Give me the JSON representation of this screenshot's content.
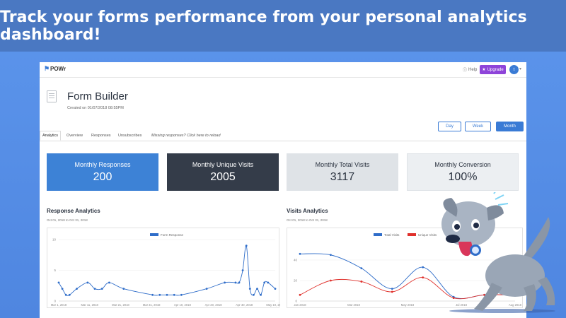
{
  "banner": {
    "text": "Track your forms performance from your personal analytics dashboard!"
  },
  "app": {
    "logo": "POWr",
    "help": "Help",
    "upgrade": "Upgrade",
    "avatar_initial": "t"
  },
  "form": {
    "title": "Form Builder",
    "created": "Created on 01/07/2018 08:55PM"
  },
  "periods": [
    "Day",
    "Week",
    "Month"
  ],
  "tabs": [
    "Analytics",
    "Overview",
    "Responses",
    "Unsubscribes",
    "Missing responses? Click here to reload"
  ],
  "cards": [
    {
      "label": "Monthly Responses",
      "value": "200"
    },
    {
      "label": "Monthly Unique Visits",
      "value": "2005"
    },
    {
      "label": "Monthly Total Visits",
      "value": "3117"
    },
    {
      "label": "Monthly Conversion",
      "value": "100%"
    }
  ],
  "response_section": {
    "title": "Response Analytics",
    "subtitle": "Oct 01, 2018 to Oct 31, 2018"
  },
  "visits_section": {
    "title": "Visits Analytics",
    "subtitle": "Oct 01, 2018 to Oct 31, 2018"
  },
  "chart_data": [
    {
      "type": "line",
      "title": "Response Analytics",
      "legend": "Form Response",
      "legend_position": "top",
      "grid": true,
      "ylim": [
        0,
        10
      ],
      "yticks": [
        "0",
        "5",
        "10"
      ],
      "xticks": [
        "Mar 1, 2018",
        "Mar 11, 2018",
        "Mar 21, 2018",
        "Mar 31, 2018",
        "Apr 10, 2018",
        "Apr 20, 2018",
        "Apr 30, 2018",
        "May 10, 2018"
      ],
      "color": "#2f6dc9",
      "x": [
        0,
        1,
        2,
        3,
        5,
        8,
        10,
        12,
        14,
        18,
        26,
        28,
        30,
        32,
        34,
        41,
        46,
        49,
        50,
        51,
        52,
        53,
        54,
        55,
        56,
        57,
        58,
        60
      ],
      "values": [
        3,
        2,
        1,
        1,
        2,
        3,
        2,
        2,
        3,
        2,
        1,
        1,
        1,
        1,
        1,
        2,
        3,
        3,
        3,
        5,
        9,
        2,
        1,
        2,
        1,
        3,
        3,
        2
      ]
    },
    {
      "type": "line",
      "title": "Visits Analytics",
      "legend_position": "top",
      "grid": true,
      "ylim": [
        0,
        60
      ],
      "yticks": [
        "0",
        "20",
        "40"
      ],
      "xticks": [
        "Jan 2018",
        "Mar 2018",
        "May 2018",
        "Jul 2018",
        "Aug 2018"
      ],
      "series": [
        {
          "name": "Total Visits",
          "color": "#2f6dc9",
          "x": [
            0,
            1,
            2,
            3,
            4,
            5,
            6,
            7
          ],
          "values": [
            46,
            45,
            32,
            12,
            33,
            4,
            6,
            6
          ]
        },
        {
          "name": "Unique Visits",
          "color": "#e0302b",
          "x": [
            0,
            1,
            2,
            3,
            4,
            5,
            6,
            7
          ],
          "values": [
            6,
            20,
            19,
            9,
            23,
            3,
            6,
            6
          ]
        }
      ]
    }
  ]
}
